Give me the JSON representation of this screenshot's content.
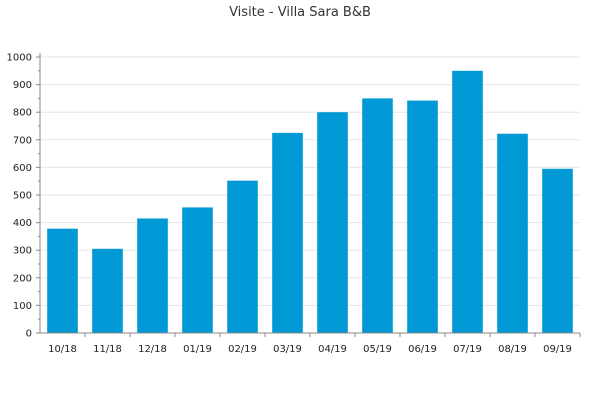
{
  "chart_data": {
    "type": "bar",
    "title": "Visite - Villa Sara B&B",
    "xlabel": "",
    "ylabel": "",
    "categories": [
      "10/18",
      "11/18",
      "12/18",
      "01/19",
      "02/19",
      "03/19",
      "04/19",
      "05/19",
      "06/19",
      "07/19",
      "08/19",
      "09/19"
    ],
    "values": [
      378,
      305,
      415,
      455,
      552,
      725,
      800,
      850,
      842,
      950,
      722,
      595
    ],
    "ylim": [
      0,
      1000
    ],
    "yticks": [
      0,
      100,
      200,
      300,
      400,
      500,
      600,
      700,
      800,
      900,
      1000
    ],
    "grid": true,
    "legend": "none",
    "colors": {
      "bar": "#0099d6",
      "grid": "#e6e6e6",
      "axis": "#888888",
      "text": "#222222"
    }
  }
}
